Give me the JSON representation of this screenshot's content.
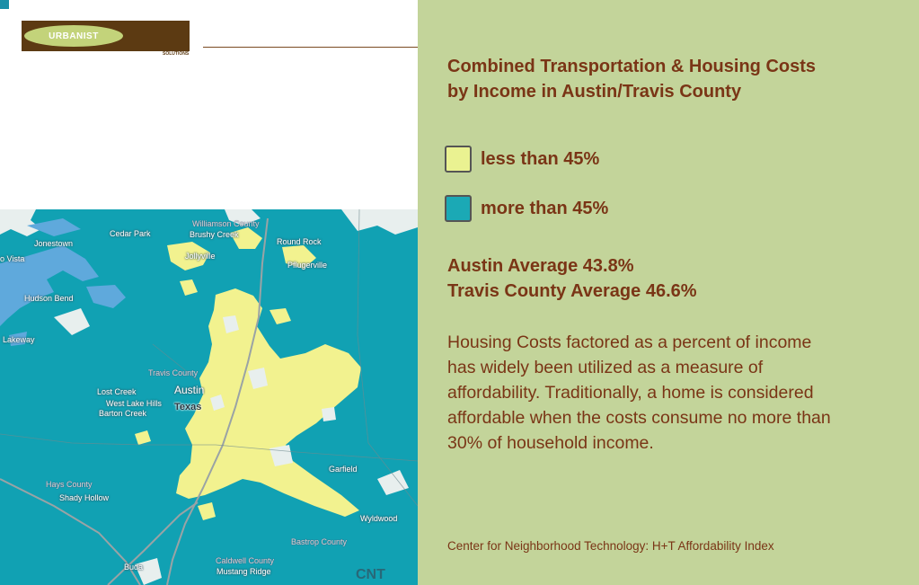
{
  "logo": {
    "name": "URBANIST",
    "subtitle": "SOLUTIONS",
    "oval_color": "#c3d37a",
    "block_color": "#5c3a12"
  },
  "map": {
    "labels": {
      "cedar_park": "Cedar Park",
      "brushy_creek": "Brushy Creek",
      "williamson_county": "Williamson County",
      "round_rock": "Round Rock",
      "jonestown": "Jonestown",
      "point_venture": "o Vista",
      "jollyville": "Jollyville",
      "pflugerville": "Pflugerville",
      "hudson_bend": "Hudson Bend",
      "lakeway": "Lakeway",
      "travis_county": "Travis County",
      "lost_creek": "Lost Creek",
      "austin": "Austin",
      "west_lake_hills": "West Lake Hills",
      "texas": "Texas",
      "barton_creek": "Barton Creek",
      "garfield": "Garfield",
      "hays_county": "Hays County",
      "shady_hollow": "Shady Hollow",
      "wyldwood": "Wyldwood",
      "bastrop_county": "Bastrop County",
      "caldwell_county": "Caldwell County",
      "buda": "Buda",
      "mustang_ridge": "Mustang Ridge"
    },
    "watermark": "CNT",
    "colors": {
      "above": "#11a1b3",
      "below": "#f2f28f",
      "water": "#5fa9dc",
      "road": "#9aa3a5"
    }
  },
  "info": {
    "title": "Combined Transportation & Housing Costs by Income in Austin/Travis County",
    "legend": [
      {
        "label": "less than 45%",
        "color": "#eaf291"
      },
      {
        "label": "more than 45%",
        "color": "#1ba9b5"
      }
    ],
    "austin_average": "Austin Average 43.8%",
    "travis_average": "Travis County Average 46.6%",
    "body": "Housing Costs factored as a percent of income has widely been utilized as a measure of affordability. Traditionally, a home is considered affordable when the costs consume no more than 30% of household income.",
    "source": "Center for Neighborhood Technology: H+T Affordability Index"
  }
}
